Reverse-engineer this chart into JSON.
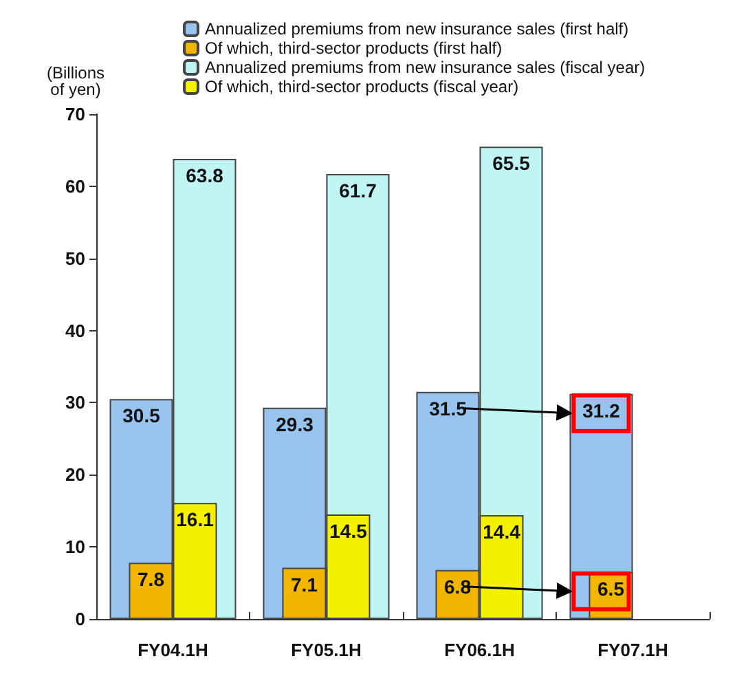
{
  "chart_data": {
    "type": "bar",
    "ylabel": "(Billions\nof yen)",
    "categories": [
      "FY04.1H",
      "FY05.1H",
      "FY06.1H",
      "FY07.1H"
    ],
    "series": [
      {
        "name": "Annualized premiums from new insurance sales (first half)",
        "color": "#99c3ef",
        "values": [
          30.5,
          29.3,
          31.5,
          31.2
        ]
      },
      {
        "name": "Of which, third-sector products (first half)",
        "color": "#f2b600",
        "values": [
          7.8,
          7.1,
          6.8,
          6.5
        ]
      },
      {
        "name": "Annualized premiums from new insurance sales (fiscal year)",
        "color": "#bff5f5",
        "values": [
          63.8,
          61.7,
          65.5,
          null
        ]
      },
      {
        "name": "Of which, third-sector products (fiscal year)",
        "color": "#f5f000",
        "values": [
          16.1,
          14.5,
          14.4,
          null
        ]
      }
    ],
    "ylim": [
      0,
      70
    ],
    "yticks": [
      0,
      10,
      20,
      30,
      40,
      50,
      60,
      70
    ],
    "grid": false,
    "legend": "top",
    "data_labels": true
  }
}
